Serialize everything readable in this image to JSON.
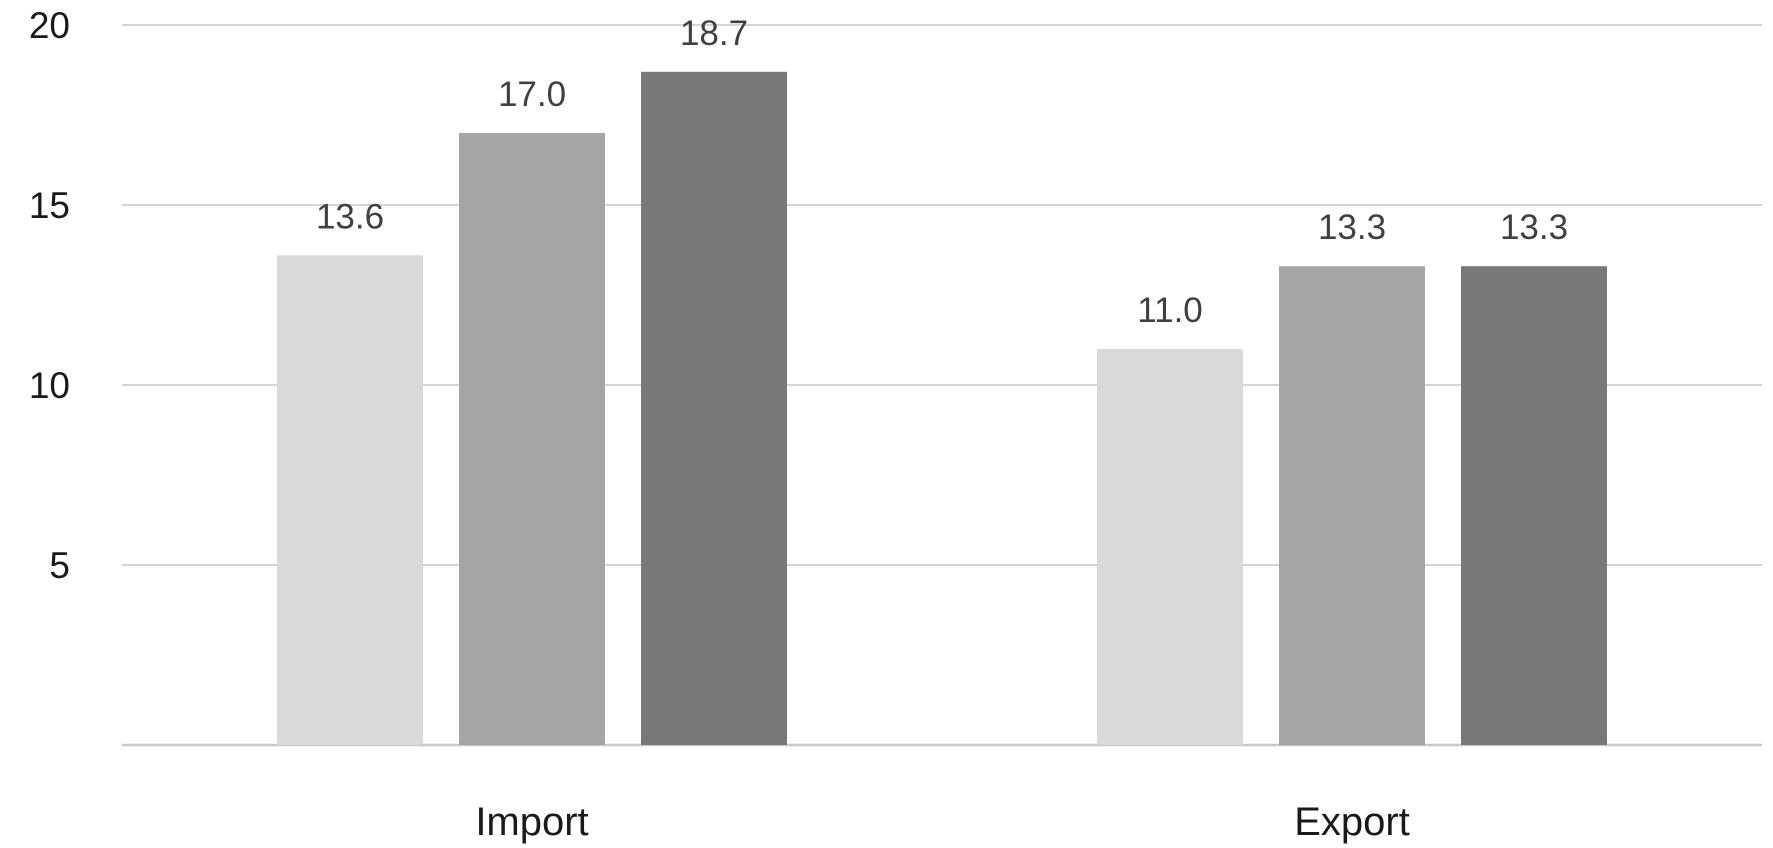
{
  "chart_data": {
    "type": "bar",
    "categories": [
      "Import",
      "Export"
    ],
    "series": [
      {
        "values": [
          13.6,
          11.0
        ],
        "labels": [
          "13.6",
          "11.0"
        ],
        "color": "#d9d9d9"
      },
      {
        "values": [
          17.0,
          13.3
        ],
        "labels": [
          "17.0",
          "13.3"
        ],
        "color": "#a6a6a6"
      },
      {
        "values": [
          18.7,
          13.3
        ],
        "labels": [
          "18.7",
          "13.3"
        ],
        "color": "#787878"
      }
    ],
    "yticks": [
      5,
      10,
      15,
      20
    ],
    "ytick_labels": [
      "5",
      "10",
      "15",
      "20"
    ],
    "ylim": [
      0,
      20
    ],
    "grid": true,
    "legend": "none"
  }
}
